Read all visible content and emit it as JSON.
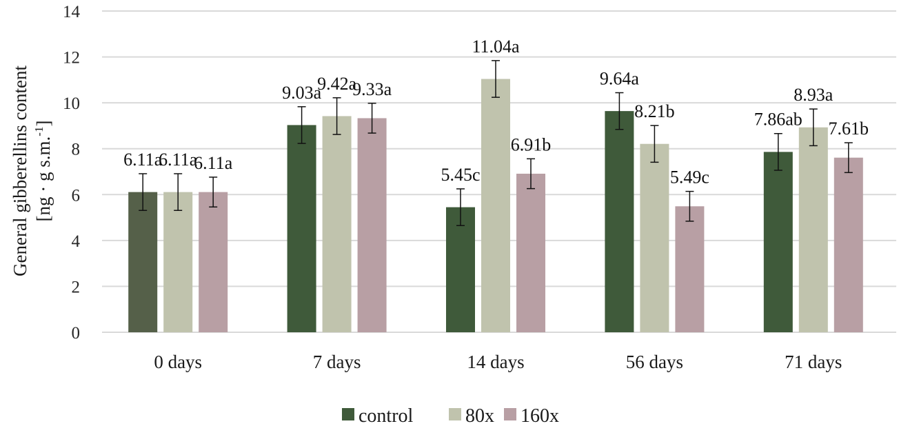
{
  "chart_data": {
    "type": "bar",
    "title": "",
    "xlabel": "",
    "ylabel_line1": "General gibberellins content",
    "ylabel_line2_prefix": "[ng · g s.m.",
    "ylabel_line2_sup": "-1",
    "ylabel_line2_suffix": "]",
    "ylim": [
      0,
      14
    ],
    "yticks": [
      "0",
      "2",
      "4",
      "6",
      "8",
      "10",
      "12",
      "14"
    ],
    "ytick_values": [
      0,
      2,
      4,
      6,
      8,
      10,
      12,
      14
    ],
    "grid": true,
    "legend_position": "bottom-center",
    "categories": [
      "0 days",
      "7 days",
      "14 days",
      "56 days",
      "71 days"
    ],
    "series": [
      {
        "name": "control",
        "color": "#3f5a3a",
        "values": [
          6.11,
          9.03,
          5.45,
          9.64,
          7.86
        ],
        "errors": [
          0.8,
          0.8,
          0.8,
          0.8,
          0.8
        ],
        "labels": [
          "6.11a",
          "9.03a",
          "5.45c",
          "9.64a",
          "7.86ab"
        ]
      },
      {
        "name": "80x",
        "color": "#c0c3ad",
        "values": [
          6.11,
          9.42,
          11.04,
          8.21,
          8.93
        ],
        "errors": [
          0.8,
          0.8,
          0.8,
          0.8,
          0.8
        ],
        "labels": [
          "6.11a",
          "9.42a",
          "11.04a",
          "8.21b",
          "8.93a"
        ]
      },
      {
        "name": "160x",
        "color": "#b89fa4",
        "values": [
          6.11,
          9.33,
          6.91,
          5.49,
          7.61
        ],
        "errors": [
          0.65,
          0.65,
          0.65,
          0.65,
          0.65
        ],
        "labels": [
          "6.11a",
          "9.33a",
          "6.91b",
          "5.49c",
          "7.61b"
        ]
      }
    ],
    "first_group_control_color": "#556049"
  }
}
